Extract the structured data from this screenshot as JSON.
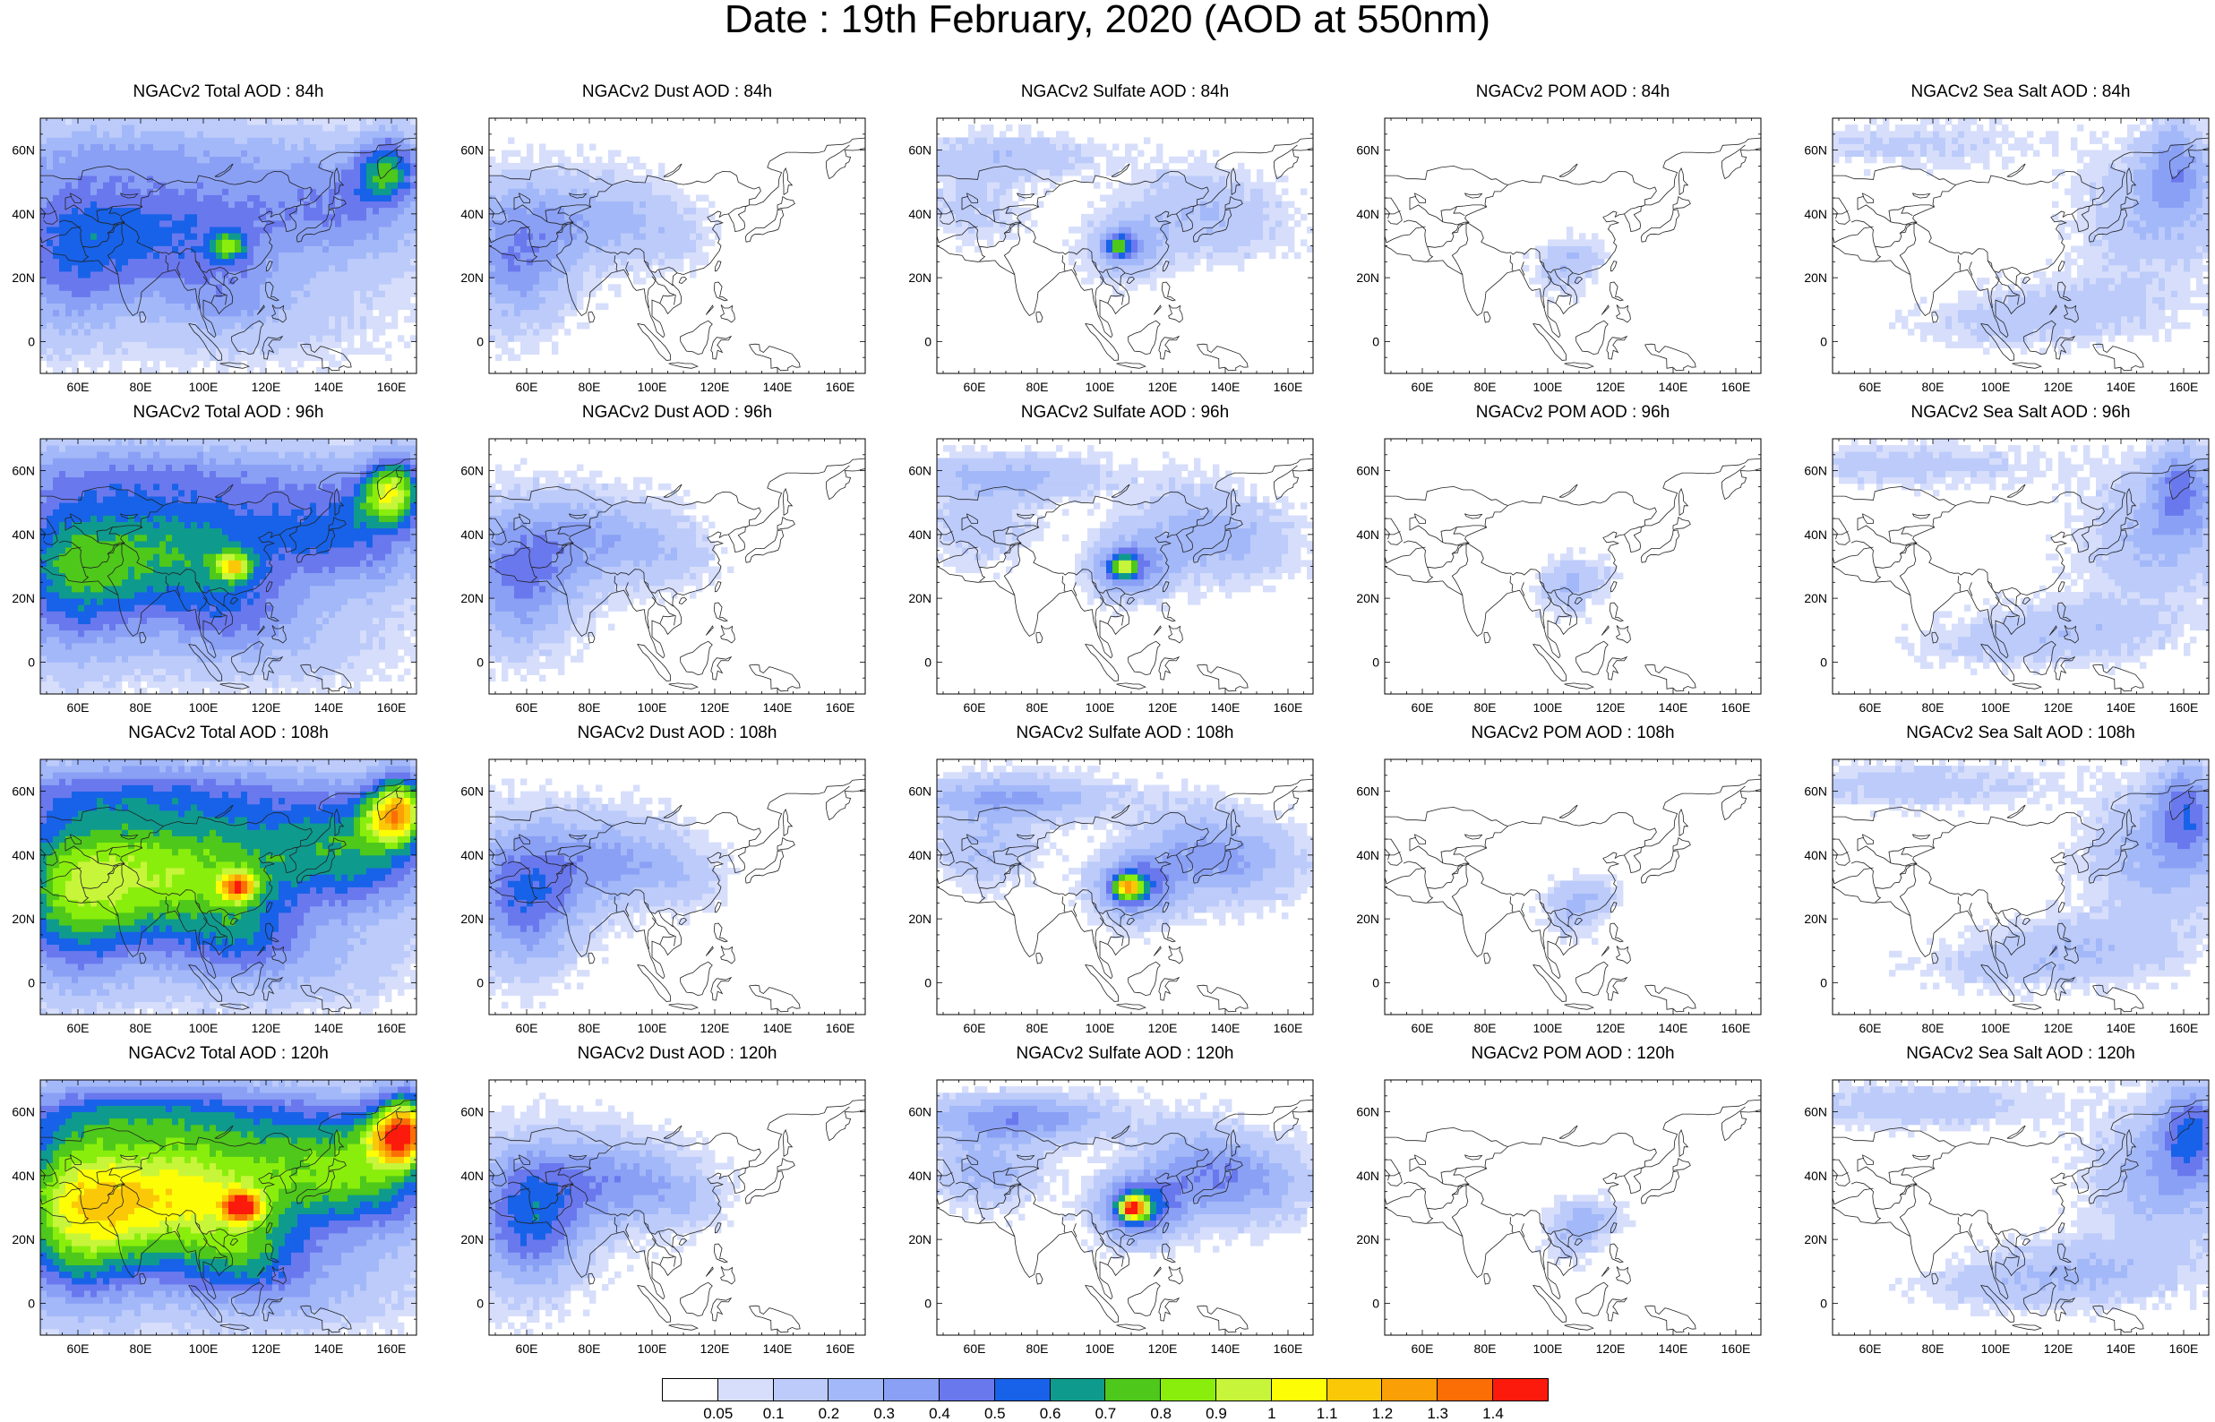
{
  "title": "Date : 19th February, 2020 (AOD at 550nm)",
  "map": {
    "lon_range": [
      48,
      168
    ],
    "lat_range": [
      -10,
      70
    ],
    "lon_ticks": [
      "60E",
      "80E",
      "100E",
      "120E",
      "140E",
      "160E"
    ],
    "lat_ticks": [
      "60N",
      "40N",
      "20N",
      "0"
    ]
  },
  "panels": [
    {
      "title": "NGACv2 Total AOD : 84h",
      "species": "total",
      "hour": 84
    },
    {
      "title": "NGACv2 Dust AOD : 84h",
      "species": "dust",
      "hour": 84
    },
    {
      "title": "NGACv2 Sulfate AOD : 84h",
      "species": "sulfate",
      "hour": 84
    },
    {
      "title": "NGACv2 POM AOD : 84h",
      "species": "pom",
      "hour": 84
    },
    {
      "title": "NGACv2 Sea Salt AOD : 84h",
      "species": "seasalt",
      "hour": 84
    },
    {
      "title": "NGACv2 Total AOD : 96h",
      "species": "total",
      "hour": 96
    },
    {
      "title": "NGACv2 Dust AOD : 96h",
      "species": "dust",
      "hour": 96
    },
    {
      "title": "NGACv2 Sulfate AOD : 96h",
      "species": "sulfate",
      "hour": 96
    },
    {
      "title": "NGACv2 POM AOD : 96h",
      "species": "pom",
      "hour": 96
    },
    {
      "title": "NGACv2 Sea Salt AOD : 96h",
      "species": "seasalt",
      "hour": 96
    },
    {
      "title": "NGACv2 Total AOD : 108h",
      "species": "total",
      "hour": 108
    },
    {
      "title": "NGACv2 Dust AOD : 108h",
      "species": "dust",
      "hour": 108
    },
    {
      "title": "NGACv2 Sulfate AOD : 108h",
      "species": "sulfate",
      "hour": 108
    },
    {
      "title": "NGACv2 POM AOD : 108h",
      "species": "pom",
      "hour": 108
    },
    {
      "title": "NGACv2 Sea Salt AOD : 108h",
      "species": "seasalt",
      "hour": 108
    },
    {
      "title": "NGACv2 Total AOD : 120h",
      "species": "total",
      "hour": 120
    },
    {
      "title": "NGACv2 Dust AOD : 120h",
      "species": "dust",
      "hour": 120
    },
    {
      "title": "NGACv2 Sulfate AOD : 120h",
      "species": "sulfate",
      "hour": 120
    },
    {
      "title": "NGACv2 POM AOD : 120h",
      "species": "pom",
      "hour": 120
    },
    {
      "title": "NGACv2 Sea Salt  AOD : 120h",
      "species": "seasalt",
      "hour": 120
    }
  ],
  "colorbar": {
    "colors": [
      "#ffffff",
      "#d6defb",
      "#bccbfa",
      "#a3b8f8",
      "#8aa0f5",
      "#6a78ee",
      "#1762e8",
      "#0f9a8e",
      "#4ec81a",
      "#8aee0c",
      "#c7f53a",
      "#fdfd06",
      "#fbc808",
      "#fb9f06",
      "#fb6e05",
      "#fb1a0b"
    ],
    "labels": [
      "0.05",
      "0.1",
      "0.2",
      "0.3",
      "0.4",
      "0.5",
      "0.6",
      "0.7",
      "0.8",
      "0.9",
      "1",
      "1.1",
      "1.2",
      "1.3",
      "1.4"
    ]
  }
}
